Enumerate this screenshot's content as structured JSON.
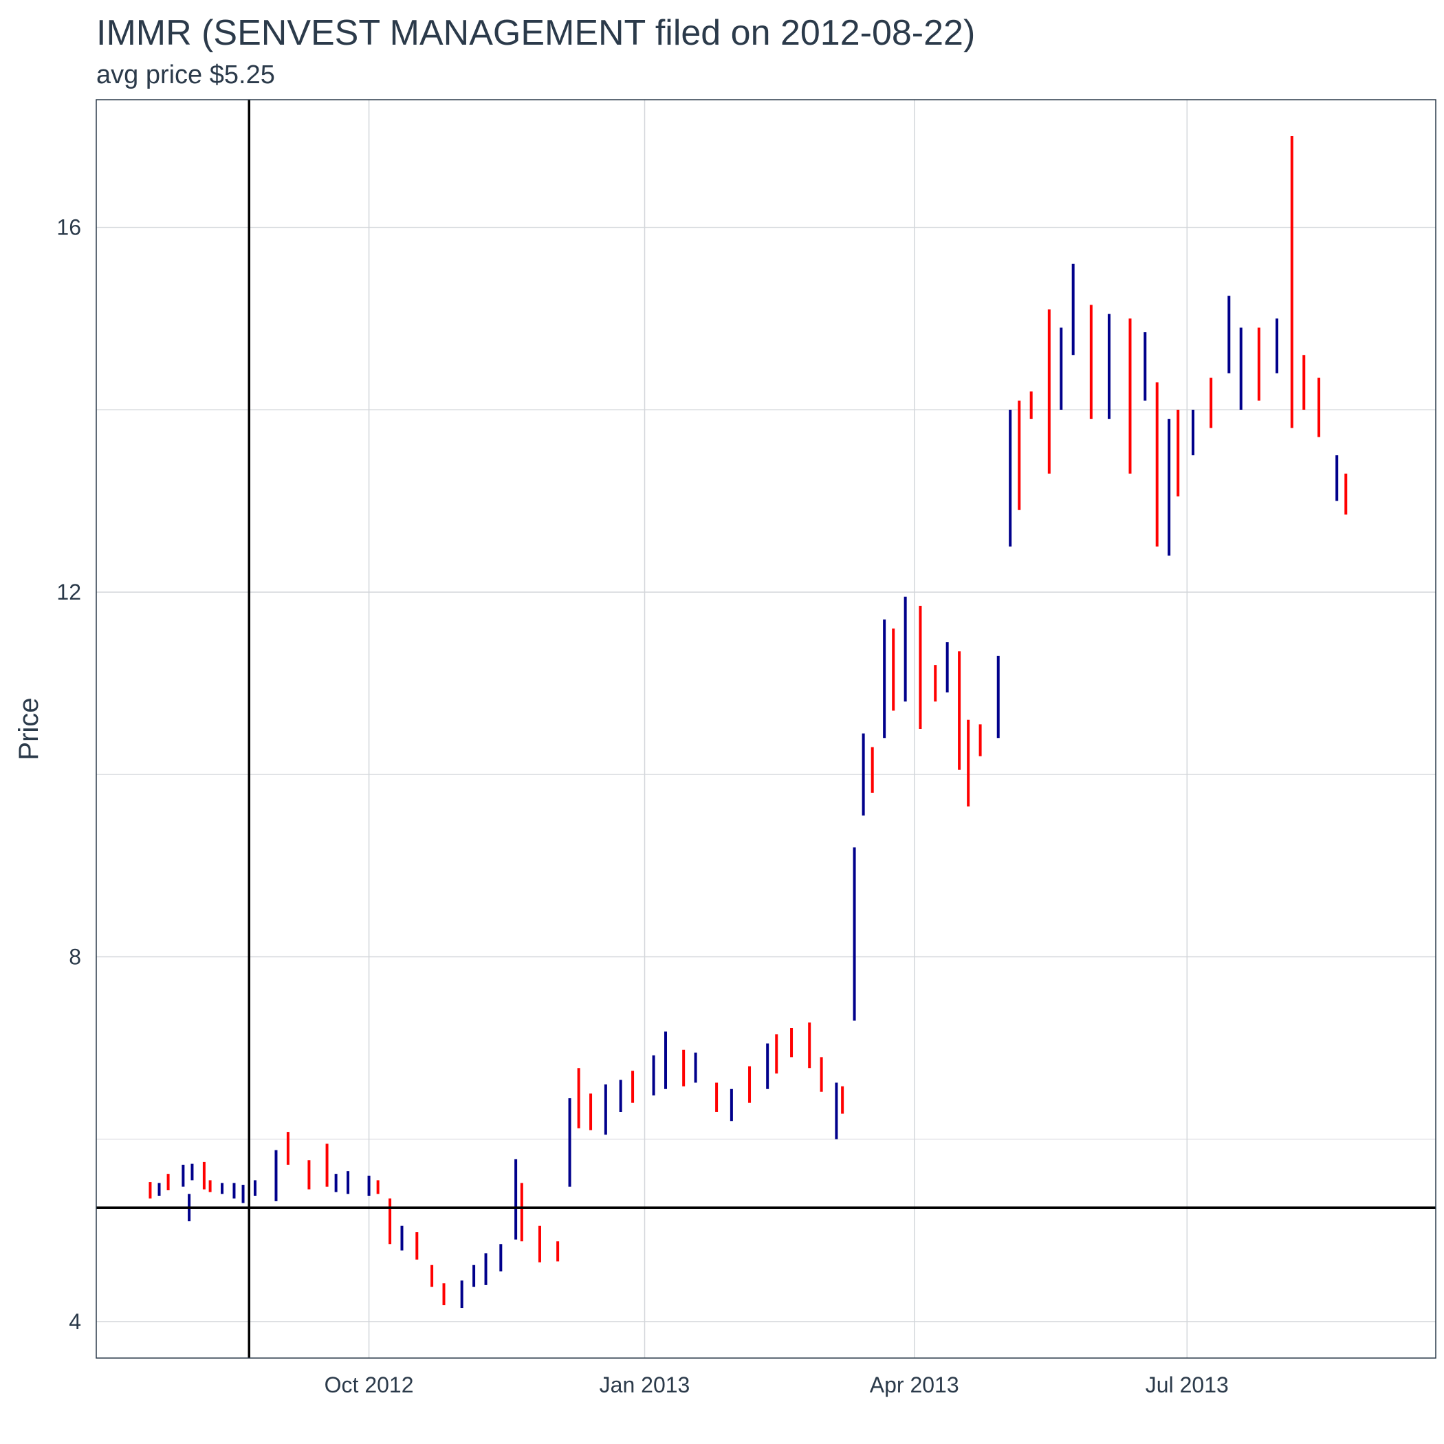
{
  "chart_data": {
    "type": "ohlc",
    "title": "IMMR (SENVEST MANAGEMENT filed on 2012-08-22)",
    "subtitle": "avg price $5.25",
    "ylabel": "Price",
    "xlabel": "",
    "x_ticks": [
      {
        "date": "2012-10-01",
        "label": "Oct 2012"
      },
      {
        "date": "2013-01-01",
        "label": "Jan 2013"
      },
      {
        "date": "2013-04-01",
        "label": "Apr 2013"
      },
      {
        "date": "2013-07-01",
        "label": "Jul 2013"
      }
    ],
    "y_ticks": [
      4,
      8,
      12,
      16
    ],
    "xlim": [
      "2012-07-02",
      "2013-09-22"
    ],
    "ylim": [
      3.6,
      17.4
    ],
    "grid": true,
    "reference_lines": {
      "vline_date": "2012-08-22",
      "hline_value": 5.25
    },
    "colors": {
      "up": "#00008b",
      "down": "#ff0000",
      "grid": "#d3d6da",
      "reference": "#000000",
      "frame": "#2b3a4a"
    },
    "bars": [
      {
        "date": "2012-07-20",
        "low": 5.35,
        "high": 5.53,
        "dir": "down"
      },
      {
        "date": "2012-07-23",
        "low": 5.38,
        "high": 5.52,
        "dir": "up"
      },
      {
        "date": "2012-07-26",
        "low": 5.44,
        "high": 5.62,
        "dir": "down"
      },
      {
        "date": "2012-07-31",
        "low": 5.48,
        "high": 5.72,
        "dir": "up"
      },
      {
        "date": "2012-08-02",
        "low": 5.1,
        "high": 5.4,
        "dir": "up"
      },
      {
        "date": "2012-08-03",
        "low": 5.55,
        "high": 5.73,
        "dir": "up"
      },
      {
        "date": "2012-08-07",
        "low": 5.45,
        "high": 5.75,
        "dir": "down"
      },
      {
        "date": "2012-08-09",
        "low": 5.42,
        "high": 5.55,
        "dir": "down"
      },
      {
        "date": "2012-08-13",
        "low": 5.4,
        "high": 5.52,
        "dir": "up"
      },
      {
        "date": "2012-08-17",
        "low": 5.35,
        "high": 5.52,
        "dir": "up"
      },
      {
        "date": "2012-08-20",
        "low": 5.3,
        "high": 5.5,
        "dir": "up"
      },
      {
        "date": "2012-08-24",
        "low": 5.38,
        "high": 5.55,
        "dir": "up"
      },
      {
        "date": "2012-08-31",
        "low": 5.32,
        "high": 5.88,
        "dir": "up"
      },
      {
        "date": "2012-09-04",
        "low": 5.72,
        "high": 6.08,
        "dir": "down"
      },
      {
        "date": "2012-09-11",
        "low": 5.45,
        "high": 5.77,
        "dir": "down"
      },
      {
        "date": "2012-09-17",
        "low": 5.48,
        "high": 5.95,
        "dir": "down"
      },
      {
        "date": "2012-09-20",
        "low": 5.42,
        "high": 5.62,
        "dir": "up"
      },
      {
        "date": "2012-09-24",
        "low": 5.4,
        "high": 5.65,
        "dir": "up"
      },
      {
        "date": "2012-10-01",
        "low": 5.38,
        "high": 5.6,
        "dir": "up"
      },
      {
        "date": "2012-10-04",
        "low": 5.4,
        "high": 5.55,
        "dir": "down"
      },
      {
        "date": "2012-10-08",
        "low": 4.85,
        "high": 5.35,
        "dir": "down"
      },
      {
        "date": "2012-10-12",
        "low": 4.78,
        "high": 5.05,
        "dir": "up"
      },
      {
        "date": "2012-10-17",
        "low": 4.68,
        "high": 4.98,
        "dir": "down"
      },
      {
        "date": "2012-10-22",
        "low": 4.38,
        "high": 4.62,
        "dir": "down"
      },
      {
        "date": "2012-10-26",
        "low": 4.18,
        "high": 4.42,
        "dir": "down"
      },
      {
        "date": "2012-11-01",
        "low": 4.15,
        "high": 4.45,
        "dir": "up"
      },
      {
        "date": "2012-11-05",
        "low": 4.38,
        "high": 4.62,
        "dir": "up"
      },
      {
        "date": "2012-11-09",
        "low": 4.4,
        "high": 4.75,
        "dir": "up"
      },
      {
        "date": "2012-11-14",
        "low": 4.55,
        "high": 4.85,
        "dir": "up"
      },
      {
        "date": "2012-11-19",
        "low": 4.9,
        "high": 5.78,
        "dir": "up"
      },
      {
        "date": "2012-11-21",
        "low": 4.88,
        "high": 5.52,
        "dir": "down"
      },
      {
        "date": "2012-11-27",
        "low": 4.65,
        "high": 5.05,
        "dir": "down"
      },
      {
        "date": "2012-12-03",
        "low": 4.66,
        "high": 4.88,
        "dir": "down"
      },
      {
        "date": "2012-12-07",
        "low": 5.48,
        "high": 6.45,
        "dir": "up"
      },
      {
        "date": "2012-12-10",
        "low": 6.12,
        "high": 6.78,
        "dir": "down"
      },
      {
        "date": "2012-12-14",
        "low": 6.1,
        "high": 6.5,
        "dir": "down"
      },
      {
        "date": "2012-12-19",
        "low": 6.05,
        "high": 6.6,
        "dir": "up"
      },
      {
        "date": "2012-12-24",
        "low": 6.3,
        "high": 6.65,
        "dir": "up"
      },
      {
        "date": "2012-12-28",
        "low": 6.4,
        "high": 6.75,
        "dir": "down"
      },
      {
        "date": "2013-01-04",
        "low": 6.48,
        "high": 6.92,
        "dir": "up"
      },
      {
        "date": "2013-01-08",
        "low": 6.55,
        "high": 7.18,
        "dir": "up"
      },
      {
        "date": "2013-01-14",
        "low": 6.58,
        "high": 6.98,
        "dir": "down"
      },
      {
        "date": "2013-01-18",
        "low": 6.62,
        "high": 6.95,
        "dir": "up"
      },
      {
        "date": "2013-01-25",
        "low": 6.3,
        "high": 6.62,
        "dir": "down"
      },
      {
        "date": "2013-01-30",
        "low": 6.2,
        "high": 6.55,
        "dir": "up"
      },
      {
        "date": "2013-02-05",
        "low": 6.4,
        "high": 6.8,
        "dir": "down"
      },
      {
        "date": "2013-02-11",
        "low": 6.55,
        "high": 7.05,
        "dir": "up"
      },
      {
        "date": "2013-02-14",
        "low": 6.72,
        "high": 7.15,
        "dir": "down"
      },
      {
        "date": "2013-02-19",
        "low": 6.9,
        "high": 7.22,
        "dir": "down"
      },
      {
        "date": "2013-02-25",
        "low": 6.78,
        "high": 7.28,
        "dir": "down"
      },
      {
        "date": "2013-03-01",
        "low": 6.52,
        "high": 6.9,
        "dir": "down"
      },
      {
        "date": "2013-03-06",
        "low": 6.0,
        "high": 6.62,
        "dir": "up"
      },
      {
        "date": "2013-03-08",
        "low": 6.28,
        "high": 6.58,
        "dir": "down"
      },
      {
        "date": "2013-03-12",
        "low": 7.3,
        "high": 9.2,
        "dir": "up"
      },
      {
        "date": "2013-03-15",
        "low": 9.55,
        "high": 10.45,
        "dir": "up"
      },
      {
        "date": "2013-03-18",
        "low": 9.8,
        "high": 10.3,
        "dir": "down"
      },
      {
        "date": "2013-03-22",
        "low": 10.4,
        "high": 11.7,
        "dir": "up"
      },
      {
        "date": "2013-03-25",
        "low": 10.7,
        "high": 11.6,
        "dir": "down"
      },
      {
        "date": "2013-03-29",
        "low": 10.8,
        "high": 11.95,
        "dir": "up"
      },
      {
        "date": "2013-04-03",
        "low": 10.5,
        "high": 11.85,
        "dir": "down"
      },
      {
        "date": "2013-04-08",
        "low": 10.8,
        "high": 11.2,
        "dir": "down"
      },
      {
        "date": "2013-04-12",
        "low": 10.9,
        "high": 11.45,
        "dir": "up"
      },
      {
        "date": "2013-04-16",
        "low": 10.05,
        "high": 11.35,
        "dir": "down"
      },
      {
        "date": "2013-04-19",
        "low": 9.65,
        "high": 10.6,
        "dir": "down"
      },
      {
        "date": "2013-04-23",
        "low": 10.2,
        "high": 10.55,
        "dir": "down"
      },
      {
        "date": "2013-04-29",
        "low": 10.4,
        "high": 11.3,
        "dir": "up"
      },
      {
        "date": "2013-05-03",
        "low": 12.5,
        "high": 14.0,
        "dir": "up"
      },
      {
        "date": "2013-05-06",
        "low": 12.9,
        "high": 14.1,
        "dir": "down"
      },
      {
        "date": "2013-05-10",
        "low": 13.9,
        "high": 14.2,
        "dir": "down"
      },
      {
        "date": "2013-05-16",
        "low": 13.3,
        "high": 15.1,
        "dir": "down"
      },
      {
        "date": "2013-05-20",
        "low": 14.0,
        "high": 14.9,
        "dir": "up"
      },
      {
        "date": "2013-05-24",
        "low": 14.6,
        "high": 15.6,
        "dir": "up"
      },
      {
        "date": "2013-05-30",
        "low": 13.9,
        "high": 15.15,
        "dir": "down"
      },
      {
        "date": "2013-06-05",
        "low": 13.9,
        "high": 15.05,
        "dir": "up"
      },
      {
        "date": "2013-06-12",
        "low": 13.3,
        "high": 15.0,
        "dir": "down"
      },
      {
        "date": "2013-06-17",
        "low": 14.1,
        "high": 14.85,
        "dir": "up"
      },
      {
        "date": "2013-06-21",
        "low": 12.5,
        "high": 14.3,
        "dir": "down"
      },
      {
        "date": "2013-06-25",
        "low": 12.4,
        "high": 13.9,
        "dir": "up"
      },
      {
        "date": "2013-06-28",
        "low": 13.05,
        "high": 14.0,
        "dir": "down"
      },
      {
        "date": "2013-07-03",
        "low": 13.5,
        "high": 14.0,
        "dir": "up"
      },
      {
        "date": "2013-07-09",
        "low": 13.8,
        "high": 14.35,
        "dir": "down"
      },
      {
        "date": "2013-07-15",
        "low": 14.4,
        "high": 15.25,
        "dir": "up"
      },
      {
        "date": "2013-07-19",
        "low": 14.0,
        "high": 14.9,
        "dir": "up"
      },
      {
        "date": "2013-07-25",
        "low": 14.1,
        "high": 14.9,
        "dir": "down"
      },
      {
        "date": "2013-07-31",
        "low": 14.4,
        "high": 15.0,
        "dir": "up"
      },
      {
        "date": "2013-08-05",
        "low": 13.8,
        "high": 17.0,
        "dir": "down"
      },
      {
        "date": "2013-08-09",
        "low": 14.0,
        "high": 14.6,
        "dir": "down"
      },
      {
        "date": "2013-08-14",
        "low": 13.7,
        "high": 14.35,
        "dir": "down"
      },
      {
        "date": "2013-08-20",
        "low": 13.0,
        "high": 13.5,
        "dir": "up"
      },
      {
        "date": "2013-08-23",
        "low": 12.85,
        "high": 13.3,
        "dir": "down"
      }
    ]
  }
}
